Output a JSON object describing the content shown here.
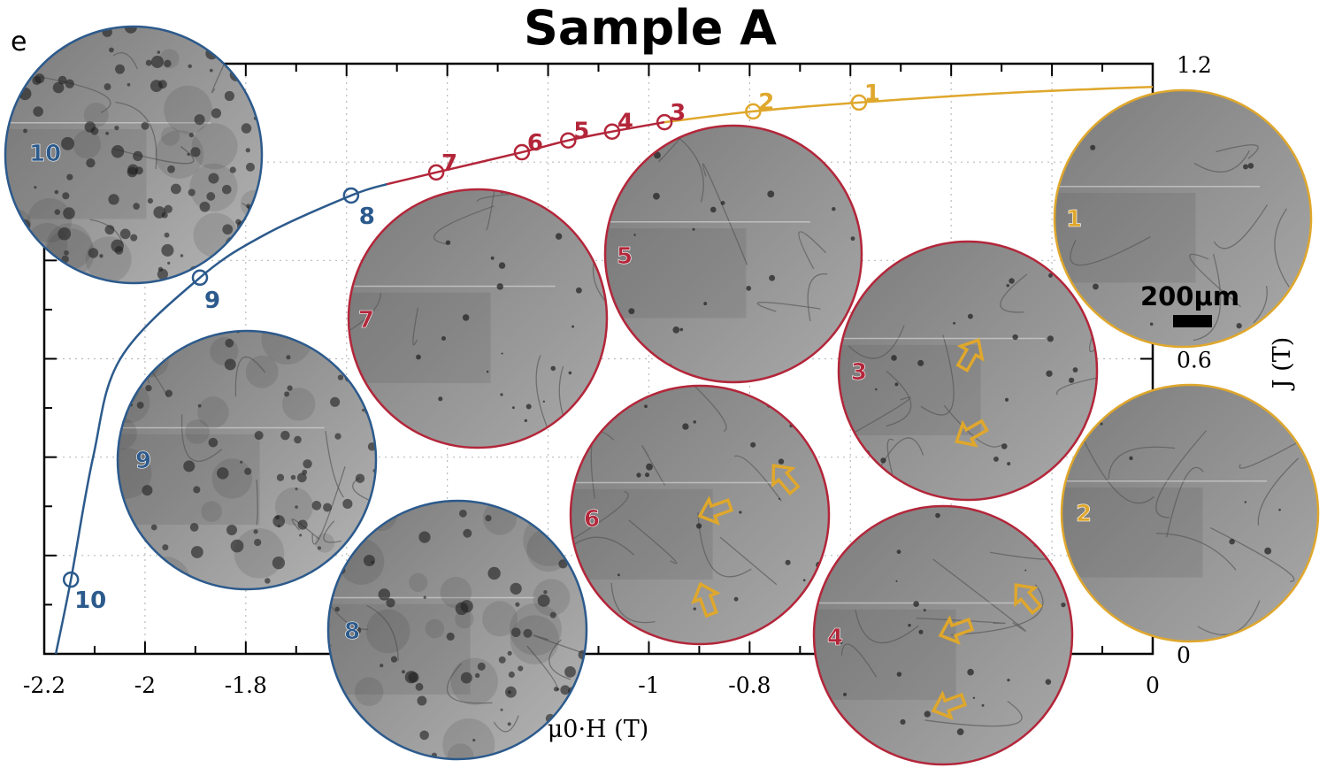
{
  "chart_data": {
    "type": "line",
    "title": "Sample A",
    "panel_label": "e",
    "xlabel": "μ0·H (T)",
    "ylabel": "J (T)",
    "xlim": [
      -2.2,
      0
    ],
    "ylim": [
      0,
      1.2
    ],
    "grid": true,
    "x_tick_labels": [
      {
        "value": -2.2,
        "label": "-2.2"
      },
      {
        "value": -2.0,
        "label": "-2"
      },
      {
        "value": -1.8,
        "label": "-1.8"
      },
      {
        "value": -1.0,
        "label": "-1"
      },
      {
        "value": -0.8,
        "label": "-0.8"
      },
      {
        "value": 0.0,
        "label": "0"
      }
    ],
    "y_tick_labels": [
      {
        "value": 0.0,
        "label": "0"
      },
      {
        "value": 0.6,
        "label": "0.6"
      },
      {
        "value": 1.2,
        "label": "1.2"
      }
    ],
    "colors": {
      "blue": "#2c5a8c",
      "red": "#b3263a",
      "yellow": "#dfa72c"
    },
    "series": [
      {
        "name": "blue-segment",
        "color": "blue",
        "points": [
          [
            -2.177,
            0
          ],
          [
            -2.147,
            0.151
          ],
          [
            -2.103,
            0.4
          ],
          [
            -2.049,
            0.6
          ],
          [
            -1.891,
            0.765
          ],
          [
            -1.761,
            0.853
          ],
          [
            -1.591,
            0.932
          ],
          [
            -1.52,
            0.955
          ]
        ]
      },
      {
        "name": "red-segment",
        "color": "red",
        "points": [
          [
            -1.52,
            0.955
          ],
          [
            -1.422,
            0.979
          ],
          [
            -1.252,
            1.02
          ],
          [
            -1.16,
            1.044
          ],
          [
            -1.073,
            1.062
          ],
          [
            -0.969,
            1.081
          ]
        ]
      },
      {
        "name": "yellow-segment",
        "color": "yellow",
        "points": [
          [
            -0.969,
            1.081
          ],
          [
            -0.793,
            1.103
          ],
          [
            -0.583,
            1.121
          ],
          [
            -0.3,
            1.14
          ],
          [
            0,
            1.153
          ]
        ]
      }
    ],
    "markers": [
      {
        "label": "1",
        "x": -0.583,
        "y": 1.121,
        "color": "yellow"
      },
      {
        "label": "2",
        "x": -0.793,
        "y": 1.103,
        "color": "yellow"
      },
      {
        "label": "3",
        "x": -0.969,
        "y": 1.081,
        "color": "red"
      },
      {
        "label": "4",
        "x": -1.073,
        "y": 1.062,
        "color": "red"
      },
      {
        "label": "5",
        "x": -1.16,
        "y": 1.044,
        "color": "red"
      },
      {
        "label": "6",
        "x": -1.252,
        "y": 1.02,
        "color": "red"
      },
      {
        "label": "7",
        "x": -1.422,
        "y": 0.979,
        "color": "red"
      },
      {
        "label": "8",
        "x": -1.591,
        "y": 0.932,
        "color": "blue"
      },
      {
        "label": "9",
        "x": -1.891,
        "y": 0.765,
        "color": "blue"
      },
      {
        "label": "10",
        "x": -2.147,
        "y": 0.151,
        "color": "blue"
      }
    ],
    "insets": [
      {
        "label": "10",
        "color": "blue"
      },
      {
        "label": "9",
        "color": "blue"
      },
      {
        "label": "8",
        "color": "blue"
      },
      {
        "label": "7",
        "color": "red"
      },
      {
        "label": "5",
        "color": "red"
      },
      {
        "label": "6",
        "color": "red"
      },
      {
        "label": "3",
        "color": "red"
      },
      {
        "label": "4",
        "color": "red"
      },
      {
        "label": "1",
        "color": "yellow"
      },
      {
        "label": "2",
        "color": "yellow"
      }
    ],
    "scale_bar": "200μm"
  }
}
